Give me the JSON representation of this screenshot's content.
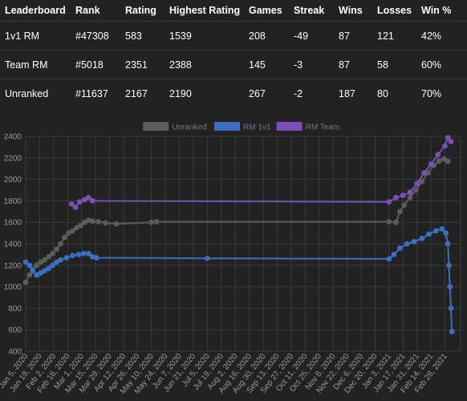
{
  "table": {
    "headers": [
      "Leaderboard",
      "Rank",
      "Rating",
      "Highest Rating",
      "Games",
      "Streak",
      "Wins",
      "Losses",
      "Win %"
    ],
    "rows": [
      [
        "1v1 RM",
        "#47308",
        "583",
        "1539",
        "208",
        "-49",
        "87",
        "121",
        "42%"
      ],
      [
        "Team RM",
        "#5018",
        "2351",
        "2388",
        "145",
        "-3",
        "87",
        "58",
        "60%"
      ],
      [
        "Unranked",
        "#11637",
        "2167",
        "2190",
        "267",
        "-2",
        "187",
        "80",
        "70%"
      ]
    ]
  },
  "chart_data": {
    "type": "line",
    "ylim": [
      400,
      2400
    ],
    "yticks": [
      "400",
      "600",
      "800",
      "1000",
      "1200",
      "1400",
      "1600",
      "1800",
      "2000",
      "2200",
      "2400"
    ],
    "xticks": [
      "Jan 5, 2020",
      "Jan 19, 2020",
      "Feb 2, 2020",
      "Feb 16, 2020",
      "Mar 1, 2020",
      "Mar 15, 2020",
      "Mar 29, 2020",
      "Apr 12, 2020",
      "Apr 26, 2020",
      "May 10, 2020",
      "May 24, 2020",
      "Jun 7, 2020",
      "Jun 21, 2020",
      "Jul 5, 2020",
      "Jul 19, 2020",
      "Aug 2, 2020",
      "Aug 16, 2020",
      "Aug 30, 2020",
      "Sep 13, 2020",
      "Sep 27, 2020",
      "Oct 11, 2020",
      "Oct 25, 2020",
      "Nov 8, 2020",
      "Nov 22, 2020",
      "Dec 6, 2020",
      "Dec 20, 2020",
      "Jan 3, 2021",
      "Jan 17, 2021",
      "Jan 31, 2021",
      "Feb 14, 2021",
      "Feb 28, 2021"
    ],
    "grid": true,
    "legend_position": "top",
    "series": [
      {
        "name": "Unranked",
        "color": "#5c5c5c",
        "points": [
          [
            "Jan 5, 2020",
            1040
          ],
          [
            "Jan 9, 2020",
            1110
          ],
          [
            "Jan 12, 2020",
            1160
          ],
          [
            "Jan 16, 2020",
            1200
          ],
          [
            "Jan 20, 2020",
            1230
          ],
          [
            "Jan 24, 2020",
            1250
          ],
          [
            "Jan 28, 2020",
            1280
          ],
          [
            "Feb 1, 2020",
            1310
          ],
          [
            "Feb 5, 2020",
            1350
          ],
          [
            "Feb 9, 2020",
            1400
          ],
          [
            "Feb 13, 2020",
            1460
          ],
          [
            "Feb 17, 2020",
            1500
          ],
          [
            "Feb 21, 2020",
            1520
          ],
          [
            "Feb 25, 2020",
            1550
          ],
          [
            "Feb 29, 2020",
            1570
          ],
          [
            "Mar 4, 2020",
            1600
          ],
          [
            "Mar 8, 2020",
            1620
          ],
          [
            "Mar 12, 2020",
            1610
          ],
          [
            "Mar 18, 2020",
            1605
          ],
          [
            "Mar 25, 2020",
            1595
          ],
          [
            "Apr 5, 2020",
            1585
          ],
          [
            "May 10, 2020",
            1600
          ],
          [
            "May 15, 2020",
            1605
          ],
          [
            "Jan 3, 2021",
            1605
          ],
          [
            "Jan 10, 2021",
            1600
          ],
          [
            "Jan 14, 2021",
            1700
          ],
          [
            "Jan 18, 2021",
            1760
          ],
          [
            "Jan 24, 2021",
            1830
          ],
          [
            "Jan 30, 2021",
            1900
          ],
          [
            "Feb 5, 2021",
            1980
          ],
          [
            "Feb 11, 2021",
            2060
          ],
          [
            "Feb 17, 2021",
            2130
          ],
          [
            "Feb 22, 2021",
            2170
          ],
          [
            "Feb 27, 2021",
            2190
          ],
          [
            "Mar 3, 2021",
            2167
          ]
        ]
      },
      {
        "name": "RM 1v1",
        "color": "#3a6ec0",
        "points": [
          [
            "Jan 5, 2020",
            1230
          ],
          [
            "Jan 9, 2020",
            1200
          ],
          [
            "Jan 12, 2020",
            1150
          ],
          [
            "Jan 16, 2020",
            1110
          ],
          [
            "Jan 20, 2020",
            1130
          ],
          [
            "Jan 24, 2020",
            1150
          ],
          [
            "Jan 28, 2020",
            1170
          ],
          [
            "Feb 1, 2020",
            1200
          ],
          [
            "Feb 5, 2020",
            1230
          ],
          [
            "Feb 9, 2020",
            1250
          ],
          [
            "Feb 15, 2020",
            1270
          ],
          [
            "Feb 21, 2020",
            1290
          ],
          [
            "Feb 27, 2020",
            1300
          ],
          [
            "Mar 3, 2020",
            1310
          ],
          [
            "Mar 8, 2020",
            1310
          ],
          [
            "Mar 12, 2020",
            1280
          ],
          [
            "Mar 16, 2020",
            1270
          ],
          [
            "Jul 5, 2020",
            1265
          ],
          [
            "Jan 3, 2021",
            1260
          ],
          [
            "Jan 8, 2021",
            1300
          ],
          [
            "Jan 14, 2021",
            1360
          ],
          [
            "Jan 21, 2021",
            1400
          ],
          [
            "Jan 28, 2021",
            1420
          ],
          [
            "Feb 5, 2021",
            1450
          ],
          [
            "Feb 12, 2021",
            1490
          ],
          [
            "Feb 19, 2021",
            1520
          ],
          [
            "Feb 25, 2021",
            1539
          ],
          [
            "Mar 1, 2021",
            1500
          ],
          [
            "Mar 3, 2021",
            1400
          ],
          [
            "Mar 4, 2021",
            1200
          ],
          [
            "Mar 5, 2021",
            1000
          ],
          [
            "Mar 6, 2021",
            800
          ],
          [
            "Mar 7, 2021",
            583
          ]
        ]
      },
      {
        "name": "RM Team",
        "color": "#7a4fb6",
        "points": [
          [
            "Feb 20, 2020",
            1770
          ],
          [
            "Feb 24, 2020",
            1740
          ],
          [
            "Feb 28, 2020",
            1790
          ],
          [
            "Mar 4, 2020",
            1810
          ],
          [
            "Mar 8, 2020",
            1830
          ],
          [
            "Mar 12, 2020",
            1800
          ],
          [
            "Jan 3, 2021",
            1790
          ],
          [
            "Jan 10, 2021",
            1830
          ],
          [
            "Jan 17, 2021",
            1850
          ],
          [
            "Jan 24, 2021",
            1880
          ],
          [
            "Jan 31, 2021",
            1960
          ],
          [
            "Feb 7, 2021",
            2060
          ],
          [
            "Feb 14, 2021",
            2140
          ],
          [
            "Feb 21, 2021",
            2230
          ],
          [
            "Feb 28, 2021",
            2310
          ],
          [
            "Mar 3, 2021",
            2388
          ],
          [
            "Mar 6, 2021",
            2351
          ]
        ]
      }
    ]
  }
}
